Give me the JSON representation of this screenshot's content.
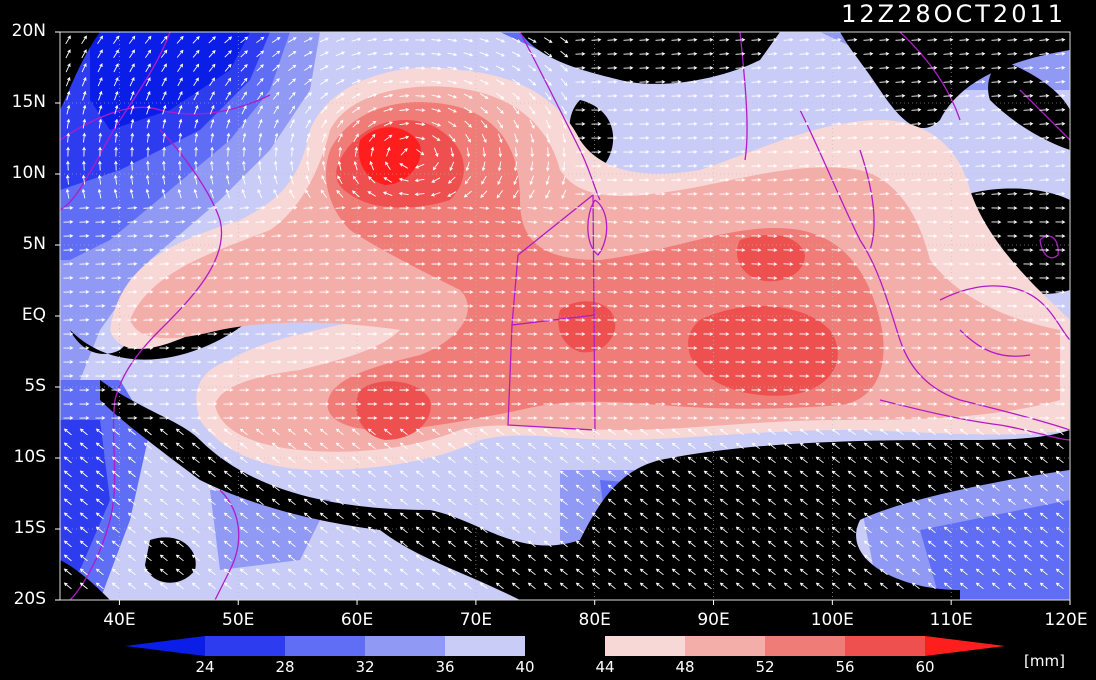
{
  "title": "12Z28OCT2011",
  "unit_label": "[mm]",
  "map": {
    "lon_range": [
      35,
      120
    ],
    "lat_range": [
      -20,
      20
    ],
    "lat_ticks": [
      "20N",
      "15N",
      "10N",
      "5N",
      "EQ",
      "5S",
      "10S",
      "15S",
      "20S"
    ],
    "lat_values": [
      20,
      15,
      10,
      5,
      0,
      -5,
      -10,
      -15,
      -20
    ],
    "lon_ticks": [
      "40E",
      "50E",
      "60E",
      "70E",
      "80E",
      "90E",
      "100E",
      "110E",
      "120E"
    ],
    "lon_values": [
      40,
      50,
      60,
      70,
      80,
      90,
      100,
      110,
      120
    ],
    "field": "precipitable water",
    "vectors": "wind"
  },
  "colorbar": {
    "labels": [
      "24",
      "28",
      "32",
      "36",
      "40",
      "44",
      "48",
      "52",
      "56",
      "60"
    ],
    "colors": [
      "#0a1ee8",
      "#2e3cf0",
      "#5f6ef4",
      "#9099f4",
      "#c8ccf6",
      "#000000",
      "#f8d8d6",
      "#f4aeaa",
      "#f07c78",
      "#ee5050",
      "#ff1e1e"
    ]
  }
}
